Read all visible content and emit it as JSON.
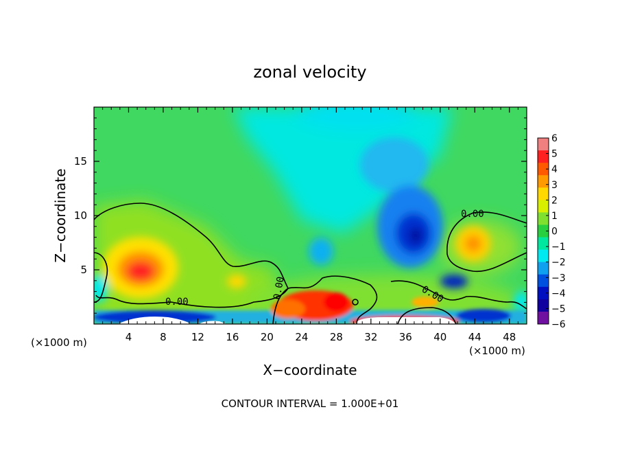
{
  "chart_data": {
    "type": "heatmap",
    "title": "zonal velocity",
    "xlabel": "X−coordinate",
    "ylabel": "Z−coordinate",
    "x_unit_label_left": "(×1000 m)",
    "x_unit_label_right": "(×1000 m)",
    "footer": "CONTOUR INTERVAL = 1.000E+01",
    "xlim": [
      0,
      50
    ],
    "ylim": [
      0,
      20
    ],
    "x_ticks": [
      4,
      8,
      12,
      16,
      20,
      24,
      28,
      32,
      36,
      40,
      44,
      48
    ],
    "x_tick_labels": [
      "4",
      "8",
      "12",
      "16",
      "20",
      "24",
      "28",
      "32",
      "36",
      "40",
      "44",
      "48"
    ],
    "y_ticks": [
      5,
      10,
      15
    ],
    "y_tick_labels": [
      "5",
      "10",
      "15"
    ],
    "colorbar": {
      "range": [
        -6,
        6
      ],
      "tick_labels": [
        "6",
        "5",
        "4",
        "3",
        "2",
        "1",
        "0",
        "−1",
        "−2",
        "−3",
        "−4",
        "−5",
        "−6"
      ],
      "colors": [
        "#f08080",
        "#ff2020",
        "#ff5a00",
        "#ff9a00",
        "#ffd800",
        "#d8f000",
        "#80e030",
        "#28d040",
        "#00e8a0",
        "#00e8f0",
        "#10a0f0",
        "#0050e0",
        "#0010c0",
        "#1000a0",
        "#7010a0"
      ]
    },
    "contour_labels": [
      "0.00",
      "0.00",
      "0.00",
      "0.00"
    ],
    "features": [
      {
        "label": "jet-max-left",
        "x": 5.5,
        "z": 4.8,
        "value": 5
      },
      {
        "label": "max-right",
        "x": 43,
        "z": 7.5,
        "value": 3
      },
      {
        "label": "min-center",
        "x": 37.5,
        "z": 8.2,
        "value": -5
      },
      {
        "label": "min-right-low",
        "x": 42,
        "z": 4,
        "value": -5
      },
      {
        "label": "upper-negative-band",
        "x": 30,
        "z": 16,
        "value": -2
      }
    ]
  }
}
